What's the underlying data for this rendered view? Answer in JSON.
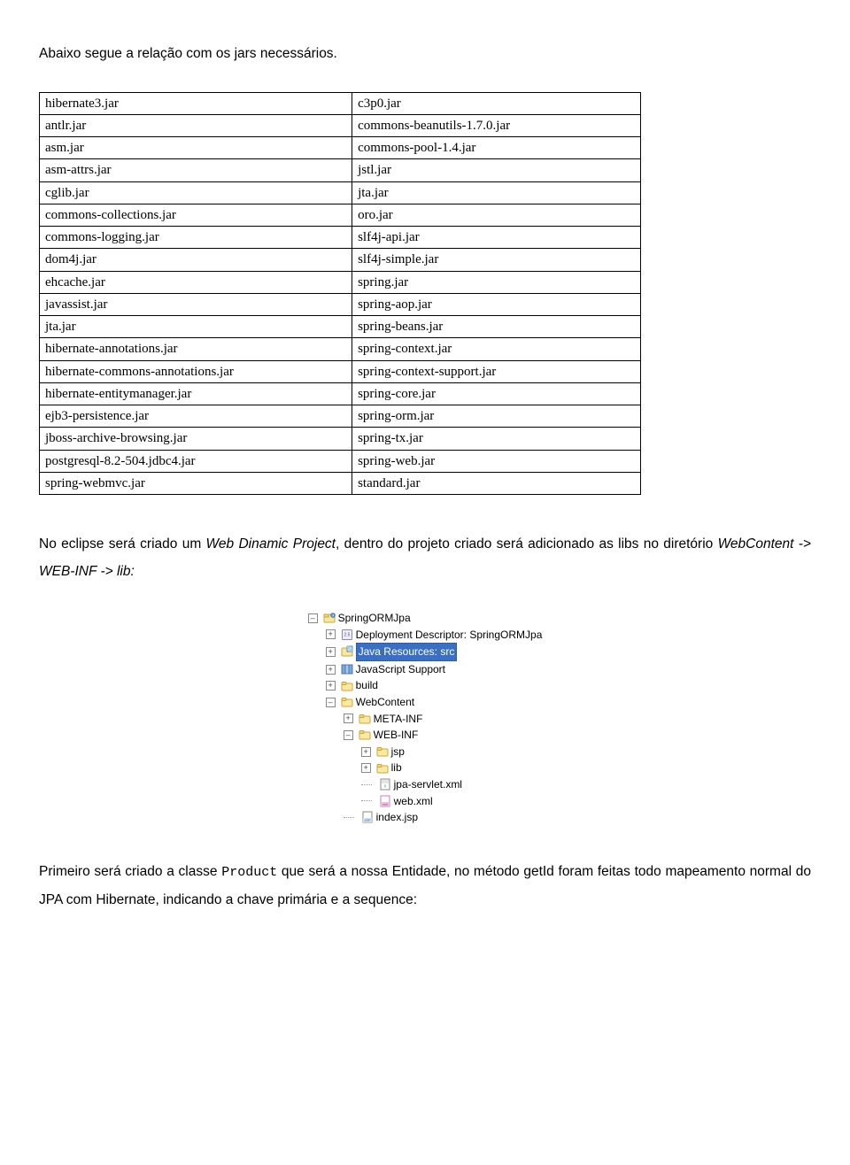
{
  "intro": "Abaixo segue a relação com os jars necessários.",
  "table": {
    "rows": [
      {
        "left": [
          "hibernate3.jar"
        ],
        "right": [
          "c3p0.jar"
        ]
      },
      {
        "left": [
          "antlr.jar"
        ],
        "right": [
          "commons-beanutils-1.7.0.jar"
        ]
      },
      {
        "left": [
          "asm.jar"
        ],
        "right": [
          "commons-pool-1.4.jar"
        ]
      },
      {
        "left": [
          "asm-attrs.jar"
        ],
        "right": [
          "jstl.jar"
        ]
      },
      {
        "left": [
          "cglib.jar"
        ],
        "right": [
          "jta.jar"
        ]
      },
      {
        "left": [
          "commons-collections.jar"
        ],
        "right": [
          "oro.jar"
        ]
      },
      {
        "left": [
          "commons-logging.jar"
        ],
        "right": [
          "slf4j-api.jar"
        ]
      },
      {
        "left": [
          "dom4j.jar"
        ],
        "right": [
          "slf4j-simple.jar"
        ]
      },
      {
        "left": [
          "ehcache.jar"
        ],
        "right": [
          "spring.jar"
        ]
      },
      {
        "left": [
          "javassist.jar"
        ],
        "right": [
          "spring-aop.jar"
        ]
      },
      {
        "left": [
          "jta.jar"
        ],
        "right": [
          "spring-beans.jar"
        ]
      },
      {
        "left": [
          "hibernate-annotations.jar"
        ],
        "right": [
          "spring-context.jar"
        ]
      },
      {
        "left": [
          "hibernate-commons-annotations.jar"
        ],
        "right": [
          "spring-context-support.jar"
        ]
      },
      {
        "left": [
          "hibernate-entitymanager.jar"
        ],
        "right": [
          "spring-core.jar"
        ]
      },
      {
        "left": [
          "ejb3-persistence.jar"
        ],
        "right": [
          "spring-orm.jar"
        ]
      },
      {
        "left": [
          "jboss-archive-browsing.jar"
        ],
        "right": [
          "spring-tx.jar"
        ]
      },
      {
        "left": [
          "postgresql-8.2-504.jdbc4.jar"
        ],
        "right": [
          "spring-web.jar"
        ]
      },
      {
        "left": [
          "spring-webmvc.jar"
        ],
        "right": [
          "standard.jar"
        ]
      }
    ]
  },
  "para1_parts": [
    {
      "t": "No eclipse será criado um ",
      "cls": ""
    },
    {
      "t": "Web Dinamic Project",
      "cls": "italic"
    },
    {
      "t": ", dentro do projeto criado será adicionado as libs no diretório ",
      "cls": ""
    },
    {
      "t": "WebContent -> WEB-INF -> lib:",
      "cls": "italic"
    }
  ],
  "tree": {
    "items": [
      {
        "depth": 0,
        "box": "–",
        "icon": "project",
        "label": "SpringORMJpa",
        "selected": false
      },
      {
        "depth": 1,
        "box": "+",
        "icon": "deploy",
        "label": "Deployment Descriptor: SpringORMJpa",
        "selected": false
      },
      {
        "depth": 1,
        "box": "+",
        "icon": "javapkg",
        "label": "Java Resources: src",
        "selected": true
      },
      {
        "depth": 1,
        "box": "+",
        "icon": "jslib",
        "label": "JavaScript Support",
        "selected": false
      },
      {
        "depth": 1,
        "box": "+",
        "icon": "folder",
        "label": "build",
        "selected": false
      },
      {
        "depth": 1,
        "box": "–",
        "icon": "folder",
        "label": "WebContent",
        "selected": false
      },
      {
        "depth": 2,
        "box": "+",
        "icon": "folder",
        "label": "META-INF",
        "selected": false
      },
      {
        "depth": 2,
        "box": "–",
        "icon": "folder",
        "label": "WEB-INF",
        "selected": false
      },
      {
        "depth": 3,
        "box": "+",
        "icon": "folder",
        "label": "jsp",
        "selected": false
      },
      {
        "depth": 3,
        "box": "+",
        "icon": "folder",
        "label": "lib",
        "selected": false
      },
      {
        "depth": 3,
        "box": "",
        "icon": "xml",
        "label": "jpa-servlet.xml",
        "selected": false
      },
      {
        "depth": 3,
        "box": "",
        "icon": "xml2",
        "label": "web.xml",
        "selected": false
      },
      {
        "depth": 2,
        "box": "",
        "icon": "jsp",
        "label": "index.jsp",
        "selected": false
      }
    ]
  },
  "para2_parts": [
    {
      "t": "Primeiro será criado a classe ",
      "cls": ""
    },
    {
      "t": "Product",
      "cls": "mono"
    },
    {
      "t": " que será a nossa Entidade, no método getId foram feitas todo mapeamento normal do JPA com Hibernate, indicando a chave primária e a sequence:",
      "cls": ""
    }
  ]
}
